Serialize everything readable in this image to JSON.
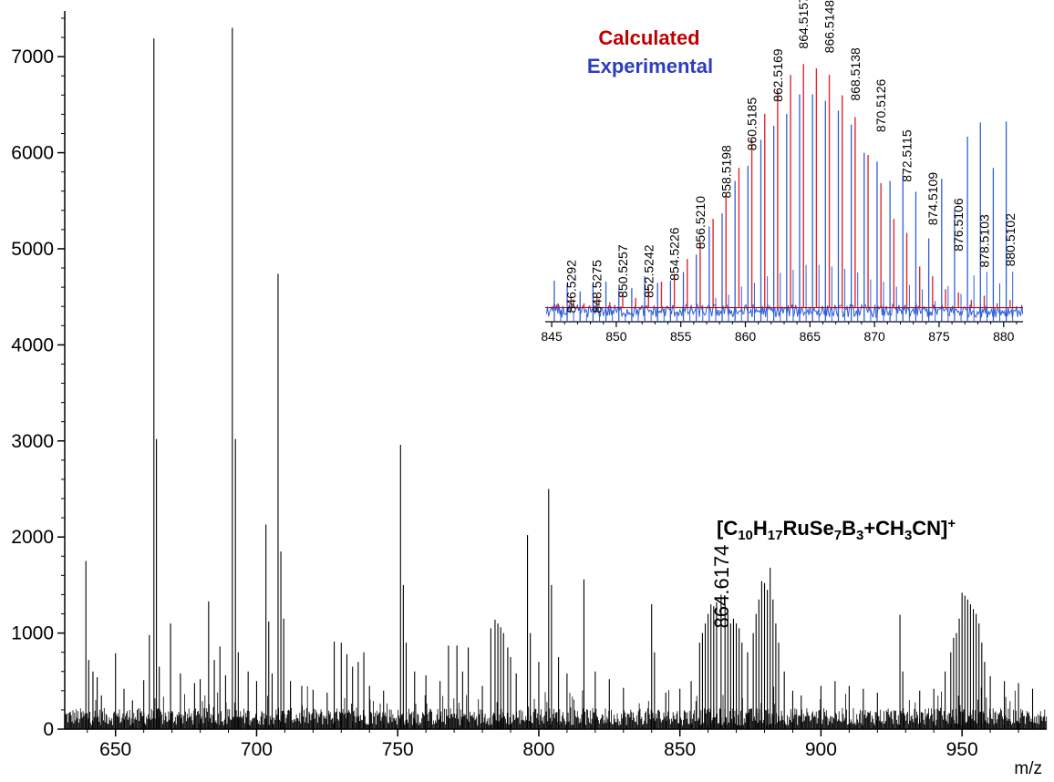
{
  "chart_data": {
    "type": "line",
    "xlabel": "m/z",
    "ylabel": "",
    "xlim": [
      632,
      980
    ],
    "ylim": [
      0,
      7400
    ],
    "xticks": [
      650,
      700,
      750,
      800,
      850,
      900,
      950
    ],
    "yticks": [
      0,
      1000,
      2000,
      3000,
      4000,
      5000,
      6000,
      7000
    ],
    "main_peaks": [
      [
        639.5,
        1750
      ],
      [
        640.5,
        720
      ],
      [
        642,
        600
      ],
      [
        643.5,
        540
      ],
      [
        645,
        350
      ],
      [
        650,
        790
      ],
      [
        653,
        420
      ],
      [
        656,
        300
      ],
      [
        660,
        510
      ],
      [
        662,
        980
      ],
      [
        663.6,
        7190
      ],
      [
        664.5,
        3020
      ],
      [
        665.5,
        650
      ],
      [
        669.5,
        1100
      ],
      [
        673,
        580
      ],
      [
        678,
        480
      ],
      [
        680,
        520
      ],
      [
        683,
        1330
      ],
      [
        685,
        720
      ],
      [
        687,
        860
      ],
      [
        689,
        560
      ],
      [
        691.4,
        7300
      ],
      [
        692.5,
        3020
      ],
      [
        693.5,
        800
      ],
      [
        697,
        600
      ],
      [
        700,
        500
      ],
      [
        703.3,
        2130
      ],
      [
        704.3,
        1120
      ],
      [
        705.5,
        580
      ],
      [
        707.6,
        4740
      ],
      [
        708.6,
        1850
      ],
      [
        709.6,
        1150
      ],
      [
        712,
        500
      ],
      [
        716,
        450
      ],
      [
        720,
        410
      ],
      [
        725,
        380
      ],
      [
        727.5,
        910
      ],
      [
        730,
        900
      ],
      [
        732,
        780
      ],
      [
        734,
        650
      ],
      [
        736,
        700
      ],
      [
        738,
        800
      ],
      [
        740,
        450
      ],
      [
        745,
        400
      ],
      [
        751,
        2960
      ],
      [
        752,
        1500
      ],
      [
        753,
        900
      ],
      [
        756,
        600
      ],
      [
        760,
        560
      ],
      [
        765,
        500
      ],
      [
        768,
        870
      ],
      [
        771,
        870
      ],
      [
        773,
        600
      ],
      [
        775,
        850
      ],
      [
        780,
        450
      ],
      [
        783,
        1050
      ],
      [
        784.5,
        1140
      ],
      [
        785.5,
        1100
      ],
      [
        786.5,
        1060
      ],
      [
        787.5,
        1000
      ],
      [
        789,
        850
      ],
      [
        790,
        750
      ],
      [
        792,
        580
      ],
      [
        796,
        2020
      ],
      [
        797,
        1000
      ],
      [
        800,
        700
      ],
      [
        803.5,
        2500
      ],
      [
        804.5,
        1500
      ],
      [
        807,
        750
      ],
      [
        810,
        580
      ],
      [
        816,
        1560
      ],
      [
        820,
        600
      ],
      [
        825,
        520
      ],
      [
        830,
        430
      ],
      [
        840,
        1300
      ],
      [
        841,
        800
      ],
      [
        845,
        380
      ],
      [
        850,
        420
      ],
      [
        854,
        500
      ],
      [
        857,
        900
      ],
      [
        858,
        1000
      ],
      [
        859,
        1100
      ],
      [
        860,
        1200
      ],
      [
        861,
        1300
      ],
      [
        862,
        1280
      ],
      [
        863,
        1320
      ],
      [
        864.6,
        1400
      ],
      [
        866,
        1300
      ],
      [
        867,
        1200
      ],
      [
        868,
        1100
      ],
      [
        869,
        1150
      ],
      [
        870,
        1100
      ],
      [
        871,
        1050
      ],
      [
        872,
        900
      ],
      [
        874,
        800
      ],
      [
        876,
        1000
      ],
      [
        877,
        1200
      ],
      [
        878,
        1350
      ],
      [
        879,
        1540
      ],
      [
        880,
        1520
      ],
      [
        881,
        1450
      ],
      [
        882,
        1680
      ],
      [
        883,
        1350
      ],
      [
        884,
        1100
      ],
      [
        885,
        900
      ],
      [
        887,
        600
      ],
      [
        890,
        400
      ],
      [
        893,
        350
      ],
      [
        900,
        450
      ],
      [
        905,
        500
      ],
      [
        910,
        450
      ],
      [
        915,
        420
      ],
      [
        920,
        380
      ],
      [
        928,
        1190
      ],
      [
        929,
        600
      ],
      [
        935,
        400
      ],
      [
        940,
        420
      ],
      [
        944,
        600
      ],
      [
        946,
        800
      ],
      [
        947,
        950
      ],
      [
        948,
        1000
      ],
      [
        949,
        1150
      ],
      [
        950,
        1420
      ],
      [
        951,
        1390
      ],
      [
        952,
        1350
      ],
      [
        953,
        1300
      ],
      [
        954,
        1250
      ],
      [
        955,
        1200
      ],
      [
        956,
        1100
      ],
      [
        957,
        900
      ],
      [
        958,
        700
      ],
      [
        960,
        550
      ],
      [
        965,
        500
      ],
      [
        970,
        480
      ],
      [
        975,
        420
      ]
    ],
    "inset": {
      "xlim": [
        844.5,
        881.5
      ],
      "xticks": [
        845,
        850,
        855,
        860,
        865,
        870,
        875,
        880
      ],
      "calculated": [
        [
          845.5,
          4350
        ],
        [
          846.5,
          4400
        ],
        [
          847.5,
          4350
        ],
        [
          848.5,
          4420
        ],
        [
          849.5,
          4360
        ],
        [
          850.5,
          4450
        ],
        [
          851.5,
          4400
        ],
        [
          852.5,
          4500
        ],
        [
          853.5,
          4550
        ],
        [
          854.5,
          4620
        ],
        [
          855.5,
          4760
        ],
        [
          856.5,
          4920
        ],
        [
          857.5,
          5130
        ],
        [
          858.5,
          5360
        ],
        [
          859.5,
          5600
        ],
        [
          860.5,
          5860
        ],
        [
          861.5,
          6100
        ],
        [
          862.5,
          6310
        ],
        [
          863.5,
          6460
        ],
        [
          864.5,
          6560
        ],
        [
          865.5,
          6520
        ],
        [
          866.5,
          6460
        ],
        [
          867.5,
          6270
        ],
        [
          868.5,
          6070
        ],
        [
          869.5,
          5720
        ],
        [
          870.5,
          5460
        ],
        [
          871.5,
          5130
        ],
        [
          872.5,
          5000
        ],
        [
          873.5,
          4690
        ],
        [
          874.5,
          4600
        ],
        [
          875.5,
          4480
        ],
        [
          876.5,
          4450
        ],
        [
          877.5,
          4380
        ],
        [
          878.5,
          4420
        ],
        [
          879.5,
          4350
        ],
        [
          880.5,
          4380
        ]
      ],
      "experimental": [
        [
          845.2,
          4560
        ],
        [
          846.2,
          4530
        ],
        [
          847.2,
          4460
        ],
        [
          848.2,
          4530
        ],
        [
          849.2,
          4550
        ],
        [
          850.2,
          4470
        ],
        [
          851.2,
          4490
        ],
        [
          852.2,
          4600
        ],
        [
          853.2,
          4540
        ],
        [
          854.2,
          4560
        ],
        [
          855.2,
          4640
        ],
        [
          856.2,
          4800
        ],
        [
          857.2,
          5060
        ],
        [
          858.2,
          5180
        ],
        [
          859.2,
          5480
        ],
        [
          860.2,
          5620
        ],
        [
          861.2,
          5860
        ],
        [
          862.2,
          5990
        ],
        [
          863.2,
          6100
        ],
        [
          864.2,
          6280
        ],
        [
          865.2,
          6280
        ],
        [
          866.2,
          6220
        ],
        [
          867.2,
          6130
        ],
        [
          868.2,
          6000
        ],
        [
          869.2,
          5740
        ],
        [
          870.2,
          5660
        ],
        [
          871.2,
          5480
        ],
        [
          872.2,
          5540
        ],
        [
          873.2,
          5380
        ],
        [
          874.2,
          4950
        ],
        [
          875.2,
          5500
        ],
        [
          876.2,
          5210
        ],
        [
          877.2,
          5890
        ],
        [
          878.2,
          6020
        ],
        [
          879.2,
          5600
        ],
        [
          880.2,
          6030
        ]
      ],
      "peak_labels": [
        "846.5292",
        "848.5275",
        "850.5257",
        "852.5242",
        "854.5226",
        "856.5210",
        "858.5198",
        "860.5185",
        "862.5169",
        "864.5157",
        "866.5148",
        "868.5138",
        "870.5126",
        "872.5115",
        "874.5109",
        "876.5106",
        "878.5103",
        "880.5102"
      ],
      "peak_label_x": [
        846.5,
        848.5,
        850.5,
        852.5,
        854.5,
        856.5,
        858.5,
        860.5,
        862.5,
        864.5,
        866.5,
        868.5,
        870.5,
        872.5,
        874.5,
        876.5,
        878.5,
        880.5
      ],
      "peak_label_y": [
        4260,
        4260,
        4400,
        4400,
        4560,
        4850,
        5320,
        5760,
        6210,
        6700,
        6660,
        6220,
        5930,
        5470,
        5070,
        4830,
        4680,
        4690
      ],
      "legend": [
        {
          "name": "Calculated",
          "color": "#c00000"
        },
        {
          "name": "Experimental",
          "color": "#2e3eb8"
        }
      ]
    },
    "annotations": {
      "formula": {
        "base": "[C",
        "parts": [
          [
            "10",
            "sub"
          ],
          [
            "H",
            ""
          ],
          [
            "17",
            "sub"
          ],
          [
            "RuSe",
            ""
          ],
          [
            "7",
            "sub"
          ],
          [
            "B",
            ""
          ],
          [
            "3",
            "sub"
          ],
          [
            "+CH",
            ""
          ],
          [
            "3",
            "sub"
          ],
          [
            "CN]",
            ""
          ],
          [
            "+",
            "sup"
          ]
        ]
      },
      "peak_mz": "864.6174",
      "peak_mz_x": 864.6,
      "peak_mz_y": 1050
    },
    "colors": {
      "main": "#000000",
      "calculated": "#e0282e",
      "experimental": "#2e5fd8",
      "baseline": "#c00000"
    }
  }
}
